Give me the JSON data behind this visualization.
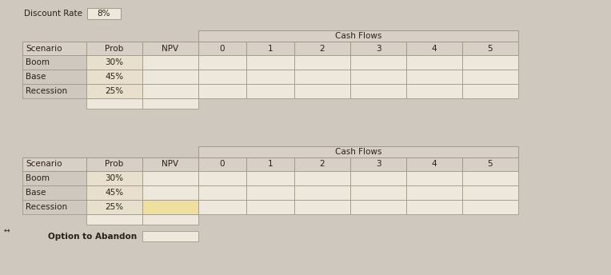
{
  "bg_color": "#cfc8be",
  "cell_bg": "#d8d0c6",
  "input_bg": "#eee8dc",
  "prob_bg": "#e8e0cc",
  "highlight_cell": "#f0e0a0",
  "border_color": "#a09888",
  "text_color": "#2a2018",
  "discount_rate_label": "Discount Rate",
  "discount_rate_value": "8%",
  "cash_flows_label": "Cash Flows",
  "col_headers": [
    "Scenario",
    "Prob",
    "NPV",
    "0",
    "1",
    "2",
    "3",
    "4",
    "5"
  ],
  "rows": [
    [
      "Boom",
      "30%"
    ],
    [
      "Base",
      "45%"
    ],
    [
      "Recession",
      "25%"
    ]
  ],
  "option_label": "Option to Abandon",
  "figsize": [
    7.64,
    3.44
  ],
  "dpi": 100
}
